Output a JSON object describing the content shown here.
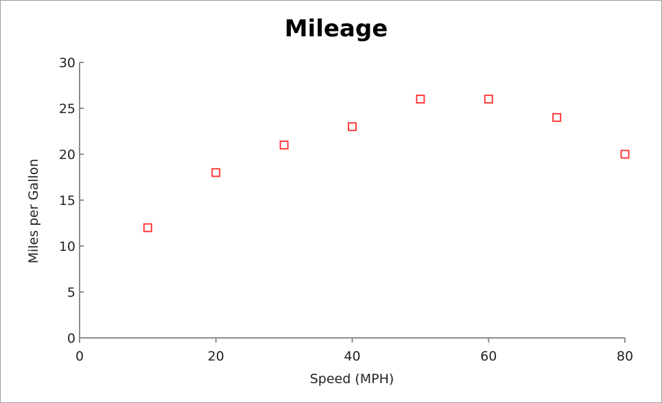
{
  "chart_data": {
    "type": "scatter",
    "title": "Mileage",
    "xlabel": "Speed (MPH)",
    "ylabel": "Miles per Gallon",
    "xlim": [
      0,
      80
    ],
    "ylim": [
      0,
      30
    ],
    "xticks": [
      0,
      20,
      40,
      60,
      80
    ],
    "yticks": [
      0,
      5,
      10,
      15,
      20,
      25,
      30
    ],
    "grid": false,
    "legend": "none",
    "marker": "open-square",
    "point_color": "#ff3b3b",
    "series": [
      {
        "x": [
          10,
          20,
          30,
          40,
          50,
          60,
          70,
          80
        ],
        "y": [
          12,
          18,
          21,
          23,
          26,
          26,
          24,
          20
        ]
      }
    ]
  }
}
